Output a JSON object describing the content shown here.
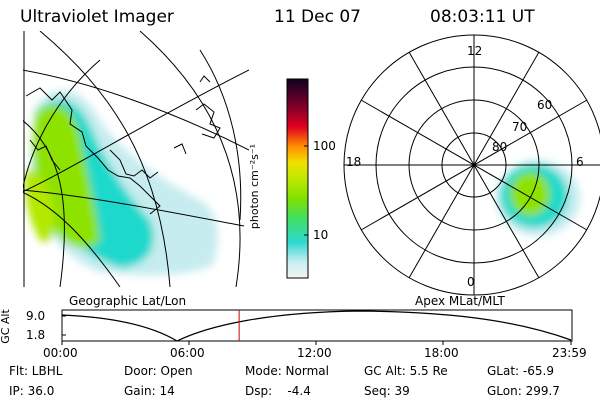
{
  "header": {
    "title": "Ultraviolet Imager",
    "date": "11 Dec 07",
    "time": "08:03:11 UT"
  },
  "left_panel": {
    "caption": "Geographic Lat/Lon"
  },
  "colorbar": {
    "label": "photon cm⁻²s⁻¹",
    "ticks": [
      "100",
      "10"
    ]
  },
  "right_panel": {
    "caption": "Apex MLat/MLT",
    "mlt_labels": {
      "top": "12",
      "left": "18",
      "right": "6",
      "bottom": "0"
    },
    "lat_labels": [
      "60",
      "70",
      "80"
    ]
  },
  "altitude_strip": {
    "axis_label": "GC Alt",
    "y_ticks": [
      "9.0",
      "1.8"
    ],
    "x_ticks": [
      "00:00",
      "06:00",
      "12:00",
      "18:00",
      "23:59"
    ],
    "current_time_fraction": 0.348
  },
  "footer": {
    "flt": "Flt: LBHL",
    "ip": "IP: 36.0",
    "door": "Door: Open",
    "gain": "Gain: 14",
    "mode": "Mode: Normal",
    "dsp": "Dsp:    -4.4",
    "gcalt": "GC Alt: 5.5 Re",
    "seq": "Seq: 39",
    "glat": "GLat: -65.9",
    "glon": "GLon: 299.7"
  },
  "colors": {
    "grid": "#000000",
    "cursor": "#cc0000",
    "aurora_low": "#00d8c8",
    "aurora_high": "#9ae000"
  }
}
